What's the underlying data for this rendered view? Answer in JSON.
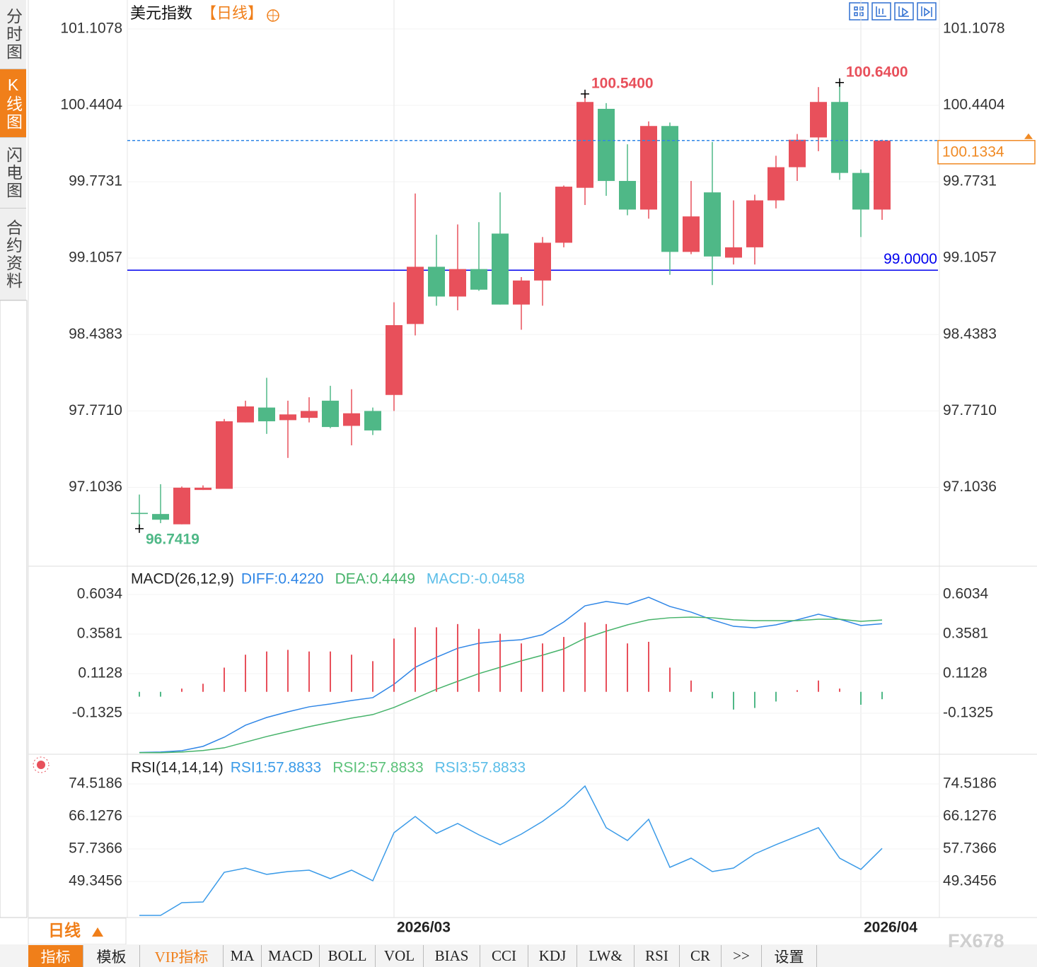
{
  "header": {
    "title": "美元指数",
    "period": "【日线】"
  },
  "sidebar_tabs": [
    "分时图",
    "K线图",
    "闪电图",
    "合约资料"
  ],
  "chart_data": [
    {
      "type": "candlestick",
      "categories": [
        null,
        null,
        null,
        null,
        null,
        null,
        null,
        null,
        null,
        null,
        null,
        null,
        "2026/03",
        null,
        null,
        null,
        null,
        null,
        null,
        null,
        null,
        null,
        null,
        null,
        null,
        null,
        null,
        null,
        null,
        null,
        null,
        null,
        null,
        null,
        "2026/04",
        null
      ],
      "open": [
        96.88,
        96.87,
        96.78,
        97.08,
        97.09,
        97.67,
        97.8,
        97.69,
        97.71,
        97.86,
        97.64,
        97.77,
        97.91,
        98.53,
        99.03,
        98.77,
        99.01,
        99.32,
        98.7,
        98.91,
        99.24,
        99.72,
        100.41,
        99.78,
        99.53,
        100.26,
        99.16,
        99.68,
        99.11,
        99.2,
        99.61,
        99.9,
        100.16,
        100.47,
        99.85,
        99.53
      ],
      "high": [
        97.04,
        97.13,
        97.11,
        97.12,
        97.7,
        97.86,
        98.06,
        97.86,
        97.89,
        97.99,
        97.96,
        97.8,
        98.72,
        99.67,
        99.31,
        99.4,
        99.42,
        99.68,
        98.94,
        99.29,
        99.74,
        100.54,
        100.46,
        100.1,
        100.3,
        100.29,
        99.78,
        100.12,
        99.61,
        99.66,
        100.0,
        100.19,
        100.6,
        100.64,
        99.88,
        100.14
      ],
      "low": [
        96.7419,
        96.79,
        96.78,
        97.08,
        97.09,
        97.67,
        97.57,
        97.36,
        97.67,
        97.62,
        97.47,
        97.56,
        97.77,
        98.43,
        98.69,
        98.65,
        98.82,
        98.7,
        98.48,
        98.69,
        99.2,
        99.57,
        99.65,
        99.48,
        99.45,
        98.96,
        99.14,
        98.87,
        99.05,
        99.05,
        99.54,
        99.78,
        100.04,
        99.79,
        99.29,
        99.44
      ],
      "close": [
        96.87,
        96.82,
        97.1,
        97.1,
        97.68,
        97.81,
        97.68,
        97.74,
        97.77,
        97.63,
        97.75,
        97.6,
        98.52,
        99.03,
        98.77,
        99.01,
        98.83,
        98.7,
        98.91,
        99.24,
        99.73,
        100.47,
        99.78,
        99.53,
        100.26,
        99.16,
        99.47,
        99.12,
        99.2,
        99.61,
        99.9,
        100.14,
        100.47,
        99.85,
        99.53,
        100.1334
      ],
      "high_labels": [
        null,
        null,
        null,
        null,
        null,
        null,
        null,
        null,
        null,
        null,
        null,
        null,
        null,
        null,
        null,
        null,
        null,
        null,
        null,
        null,
        null,
        "100.5400",
        null,
        null,
        null,
        null,
        null,
        null,
        null,
        null,
        null,
        null,
        null,
        "100.6400",
        null,
        null
      ],
      "low_labels": [
        "96.7419",
        null,
        null,
        null,
        null,
        null,
        null,
        null,
        null,
        null,
        null,
        null,
        null,
        null,
        null,
        null,
        null,
        null,
        null,
        null,
        null,
        null,
        null,
        null,
        null,
        null,
        null,
        null,
        null,
        null,
        null,
        null,
        null,
        null,
        null,
        null
      ],
      "close_labels": [
        null,
        null,
        null,
        null,
        null,
        null,
        null,
        null,
        null,
        null,
        null,
        null,
        null,
        null,
        null,
        null,
        null,
        null,
        null,
        null,
        null,
        null,
        null,
        null,
        null,
        null,
        null,
        null,
        null,
        null,
        null,
        null,
        null,
        null,
        null,
        "100.1334"
      ],
      "up_color": "#e8505b",
      "down_color": "#4fb887",
      "reference_line": {
        "value": 99,
        "label": "99.0000",
        "color": "#0000ee"
      },
      "last_price_color": "#f08a24",
      "ylim": [
        96.42,
        101.33
      ],
      "yticks": [
        101.1078,
        100.4404,
        99.7731,
        99.1057,
        98.4383,
        {
          "value": 97.771,
          "label": "97.7710"
        },
        97.1036
      ],
      "grid": true
    },
    {
      "type": "macd",
      "title": "MACD(26,12,9)",
      "series": [
        {
          "name": "DIFF:0.4220",
          "type": "line",
          "color": "#2f86e6",
          "values": [
            -0.376,
            -0.373,
            -0.365,
            -0.338,
            -0.281,
            -0.207,
            -0.159,
            -0.124,
            -0.093,
            -0.075,
            -0.054,
            -0.036,
            0.047,
            0.152,
            0.214,
            0.27,
            0.301,
            0.314,
            0.323,
            0.354,
            0.433,
            0.533,
            0.56,
            0.542,
            0.586,
            0.529,
            0.494,
            0.446,
            0.406,
            0.397,
            0.415,
            0.446,
            0.481,
            0.45,
            0.411,
            0.422
          ]
        },
        {
          "name": "DEA:0.4449",
          "type": "line",
          "color": "#46b36a",
          "values": [
            -0.377,
            -0.377,
            -0.373,
            -0.364,
            -0.347,
            -0.312,
            -0.277,
            -0.246,
            -0.216,
            -0.189,
            -0.163,
            -0.141,
            -0.097,
            -0.041,
            0.016,
            0.065,
            0.113,
            0.152,
            0.192,
            0.227,
            0.266,
            0.332,
            0.376,
            0.415,
            0.446,
            0.459,
            0.463,
            0.459,
            0.446,
            0.441,
            0.441,
            0.441,
            0.45,
            0.45,
            0.437,
            0.4449
          ]
        },
        {
          "name": "MACD:-0.0458",
          "type": "bar",
          "color": "#e8505b",
          "negative_color": "#4fb887",
          "legend_color": "#5bbde8",
          "values": [
            -0.03,
            -0.03,
            0.02,
            0.05,
            0.15,
            0.23,
            0.25,
            0.26,
            0.25,
            0.25,
            0.23,
            0.19,
            0.33,
            0.4,
            0.4,
            0.42,
            0.39,
            0.36,
            0.3,
            0.3,
            0.34,
            0.43,
            0.42,
            0.3,
            0.31,
            0.15,
            0.07,
            -0.04,
            -0.11,
            -0.1,
            -0.06,
            0.01,
            0.07,
            0.02,
            -0.08,
            -0.0458
          ]
        }
      ],
      "ylim": [
        -0.378,
        0.761
      ],
      "yticks": [
        0.6034,
        0.3581,
        0.1128,
        -0.1325
      ],
      "grid": true
    },
    {
      "type": "rsi",
      "title": "RSI(14,14,14)",
      "series": [
        {
          "name": "RSI1:57.8833",
          "color": "#3b9be8",
          "values": [
            40.59,
            40.59,
            43.87,
            44.05,
            51.71,
            52.81,
            51.17,
            51.9,
            52.26,
            50.07,
            52.26,
            49.52,
            61.93,
            66.12,
            61.75,
            64.3,
            61.38,
            58.83,
            61.56,
            64.85,
            68.86,
            73.97,
            63.21,
            59.92,
            65.39,
            52.99,
            55.36,
            51.9,
            52.81,
            56.46,
            58.83,
            61.02,
            63.21,
            55.36,
            52.45,
            57.8833
          ]
        },
        {
          "name": "RSI2:57.8833",
          "color": "#5cc27a"
        },
        {
          "name": "RSI3:57.8833",
          "color": "#5bbde8"
        }
      ],
      "ylim": [
        40.22,
        81.63
      ],
      "yticks": [
        74.5186,
        66.1276,
        57.7366,
        49.3456
      ],
      "grid": true
    }
  ],
  "period_selector": "日线",
  "toolbar": [
    "指标",
    "模板",
    "VIP指标",
    "MA",
    "MACD",
    "BOLL",
    "VOL",
    "BIAS",
    "CCI",
    "KDJ",
    "LW&",
    "RSI",
    "CR",
    ">>",
    "设置"
  ],
  "watermark": "FX678"
}
